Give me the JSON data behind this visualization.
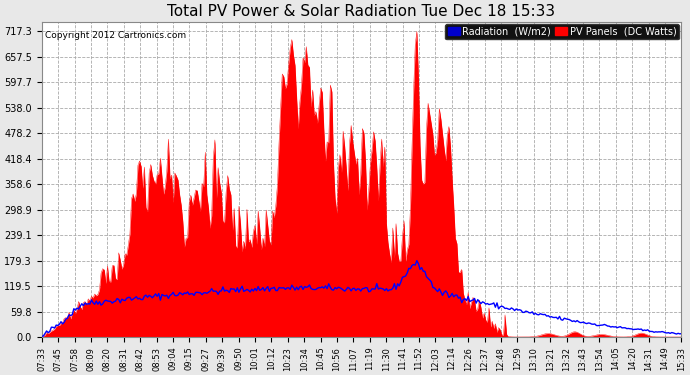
{
  "title": "Total PV Power & Solar Radiation Tue Dec 18 15:33",
  "copyright_text": "Copyright 2012 Cartronics.com",
  "legend_radiation": "Radiation  (W/m2)",
  "legend_pv": "PV Panels  (DC Watts)",
  "yticks": [
    0.0,
    59.8,
    119.5,
    179.3,
    239.1,
    298.9,
    358.6,
    418.4,
    478.2,
    538.0,
    597.7,
    657.5,
    717.3
  ],
  "ymax": 740,
  "bg_color": "#e8e8e8",
  "plot_bg_color": "#ffffff",
  "grid_color": "#aaaaaa",
  "pv_color": "#ff0000",
  "radiation_color": "#0000ff",
  "title_fontsize": 11,
  "xtick_labels": [
    "07:33",
    "07:45",
    "07:58",
    "08:09",
    "08:20",
    "08:31",
    "08:42",
    "08:53",
    "09:04",
    "09:15",
    "09:27",
    "09:39",
    "09:50",
    "10:01",
    "10:12",
    "10:23",
    "10:34",
    "10:45",
    "10:56",
    "11:07",
    "11:19",
    "11:30",
    "11:41",
    "11:52",
    "12:03",
    "12:14",
    "12:26",
    "12:37",
    "12:48",
    "12:59",
    "13:10",
    "13:21",
    "13:32",
    "13:43",
    "13:54",
    "14:05",
    "14:20",
    "14:31",
    "14:49",
    "15:33"
  ]
}
